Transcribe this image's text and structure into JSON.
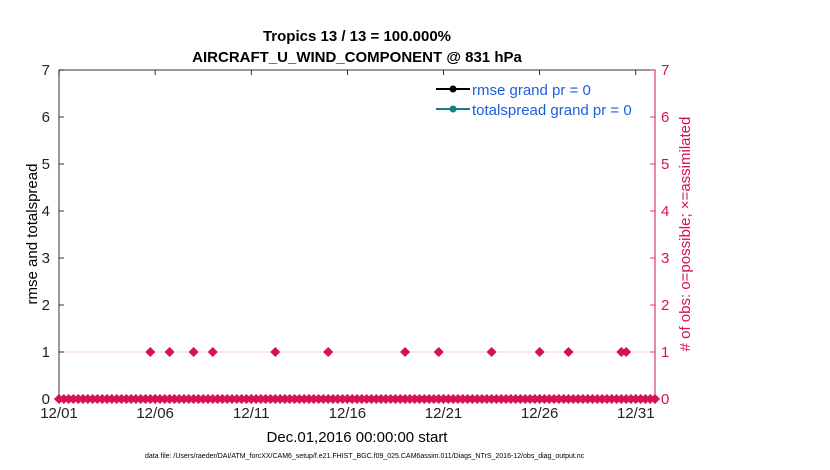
{
  "chart_data": {
    "type": "line",
    "title": [
      "Tropics 13 / 13 = 100.000%",
      "AIRCRAFT_U_WIND_COMPONENT @ 831 hPa"
    ],
    "xlabel": "Dec.01,2016 00:00:00 start",
    "ylabel": "rmse and totalspread",
    "ylabel_right": "# of obs: o=possible; ×=assimilated",
    "xlim": [
      0,
      31
    ],
    "ylim": [
      0,
      7
    ],
    "ylim_right": [
      0,
      7
    ],
    "x_ticks": [
      0,
      5,
      10,
      15,
      20,
      25,
      30
    ],
    "x_tick_labels": [
      "12/01",
      "12/06",
      "12/11",
      "12/16",
      "12/21",
      "12/26",
      "12/31"
    ],
    "y_ticks": [
      0,
      1,
      2,
      3,
      4,
      5,
      6,
      7
    ],
    "y_tick_labels": [
      "0",
      "1",
      "2",
      "3",
      "4",
      "5",
      "6",
      "7"
    ],
    "legend_position": "top-right",
    "colors": {
      "rmse": "#000000",
      "totalspread": "#138080",
      "obs": "#d6124f",
      "legend_text": "#1a5fe0",
      "right_axis": "#d6124f"
    },
    "series": [
      {
        "name": "rmse grand pr = 0",
        "values": []
      },
      {
        "name": "totalspread grand pr = 0",
        "values": []
      },
      {
        "marker": "diamond",
        "nonzero_x": [
          4.75,
          5.75,
          7.0,
          8.0,
          11.25,
          14.0,
          18.0,
          19.75,
          22.5,
          25.0,
          26.5,
          29.25,
          29.5
        ],
        "nonzero_y": 1,
        "step": 0.25,
        "zero_y": 0
      }
    ]
  },
  "footer": "data file: /Users/raeder/DAI/ATM_forcXX/CAM6_setup/f.e21.FHIST_BGC.f09_025.CAM6assim.011/Diags_NTrS_2016-12/obs_diag_output.nc"
}
